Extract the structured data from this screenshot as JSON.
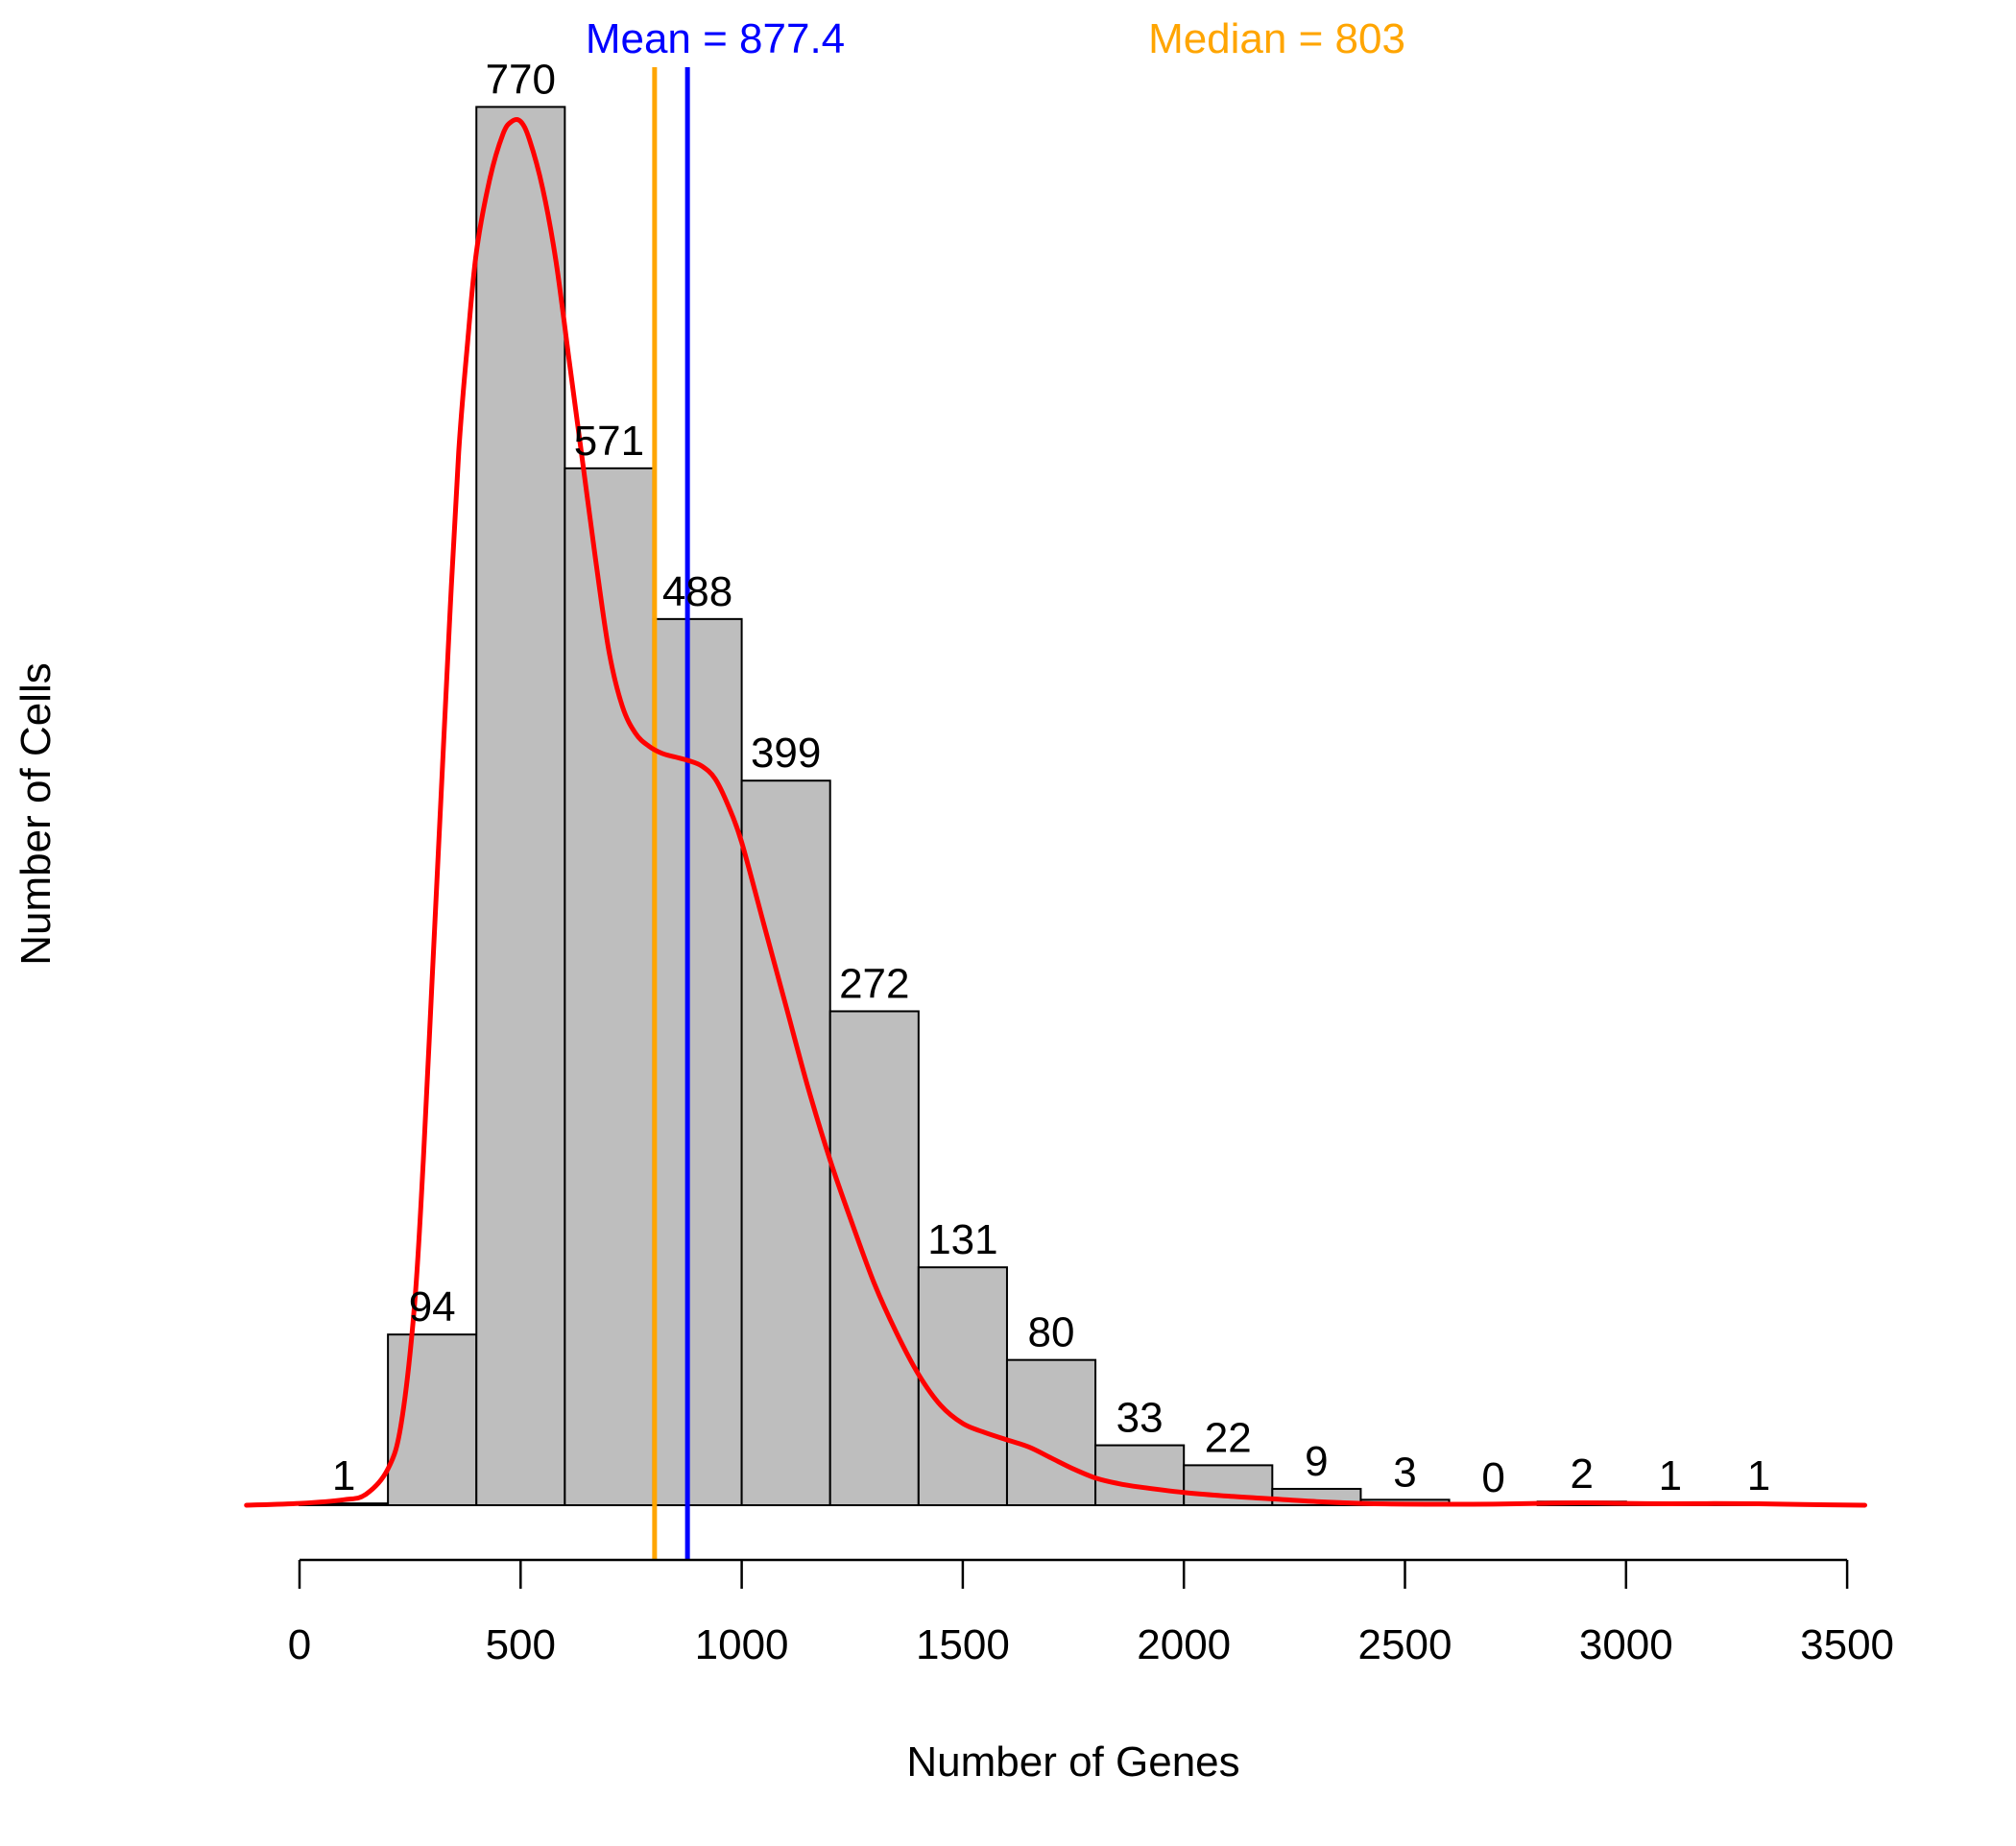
{
  "chart_data": {
    "type": "bar",
    "subtype": "histogram",
    "xlabel": "Number of Genes",
    "ylabel": "Number of Cells",
    "xlim": [
      -120,
      3540
    ],
    "ylim": [
      0,
      770
    ],
    "x_ticks": [
      0,
      500,
      1000,
      1500,
      2000,
      2500,
      3000,
      3500
    ],
    "x_tick_labels": [
      "0",
      "500",
      "1000",
      "1500",
      "2000",
      "2500",
      "3000",
      "3500"
    ],
    "bins": [
      {
        "start": 0,
        "end": 200,
        "count": 1
      },
      {
        "start": 200,
        "end": 400,
        "count": 94
      },
      {
        "start": 400,
        "end": 600,
        "count": 770
      },
      {
        "start": 600,
        "end": 800,
        "count": 571
      },
      {
        "start": 800,
        "end": 1000,
        "count": 488
      },
      {
        "start": 1000,
        "end": 1200,
        "count": 399
      },
      {
        "start": 1200,
        "end": 1400,
        "count": 272
      },
      {
        "start": 1400,
        "end": 1600,
        "count": 131
      },
      {
        "start": 1600,
        "end": 1800,
        "count": 80
      },
      {
        "start": 1800,
        "end": 2000,
        "count": 33
      },
      {
        "start": 2000,
        "end": 2200,
        "count": 22
      },
      {
        "start": 2200,
        "end": 2400,
        "count": 9
      },
      {
        "start": 2400,
        "end": 2600,
        "count": 3
      },
      {
        "start": 2600,
        "end": 2800,
        "count": 0
      },
      {
        "start": 2800,
        "end": 3000,
        "count": 2
      },
      {
        "start": 3000,
        "end": 3200,
        "count": 1
      },
      {
        "start": 3200,
        "end": 3400,
        "count": 1
      }
    ],
    "bar_labels": [
      "1",
      "94",
      "770",
      "571",
      "488",
      "399",
      "272",
      "131",
      "80",
      "33",
      "22",
      "9",
      "3",
      "0",
      "2",
      "1",
      "1"
    ],
    "reference_lines": [
      {
        "label": "Mean = 877.4",
        "value": 877.4,
        "color": "#0000ff"
      },
      {
        "label": "Median = 803",
        "value": 803,
        "color": "#ffa500"
      }
    ],
    "density_curve": {
      "color": "#ff0000",
      "points": [
        [
          -120,
          0
        ],
        [
          0,
          1
        ],
        [
          100,
          3
        ],
        [
          150,
          6
        ],
        [
          200,
          20
        ],
        [
          230,
          45
        ],
        [
          260,
          110
        ],
        [
          280,
          190
        ],
        [
          300,
          290
        ],
        [
          320,
          390
        ],
        [
          340,
          490
        ],
        [
          360,
          580
        ],
        [
          380,
          640
        ],
        [
          400,
          690
        ],
        [
          430,
          730
        ],
        [
          460,
          755
        ],
        [
          480,
          762
        ],
        [
          500,
          762
        ],
        [
          520,
          752
        ],
        [
          550,
          725
        ],
        [
          580,
          685
        ],
        [
          610,
          630
        ],
        [
          640,
          575
        ],
        [
          670,
          520
        ],
        [
          700,
          470
        ],
        [
          730,
          440
        ],
        [
          760,
          425
        ],
        [
          790,
          418
        ],
        [
          820,
          414
        ],
        [
          850,
          412
        ],
        [
          880,
          410
        ],
        [
          910,
          407
        ],
        [
          940,
          400
        ],
        [
          970,
          385
        ],
        [
          1000,
          365
        ],
        [
          1050,
          320
        ],
        [
          1100,
          275
        ],
        [
          1150,
          230
        ],
        [
          1200,
          190
        ],
        [
          1250,
          155
        ],
        [
          1300,
          122
        ],
        [
          1350,
          95
        ],
        [
          1400,
          72
        ],
        [
          1450,
          55
        ],
        [
          1500,
          45
        ],
        [
          1550,
          40
        ],
        [
          1600,
          36
        ],
        [
          1650,
          32
        ],
        [
          1700,
          26
        ],
        [
          1750,
          20
        ],
        [
          1800,
          15
        ],
        [
          1850,
          12
        ],
        [
          1900,
          10
        ],
        [
          2000,
          7
        ],
        [
          2100,
          5
        ],
        [
          2200,
          3.5
        ],
        [
          2300,
          2
        ],
        [
          2400,
          1
        ],
        [
          2500,
          0.6
        ],
        [
          2600,
          0.5
        ],
        [
          2700,
          0.6
        ],
        [
          2800,
          1
        ],
        [
          2900,
          1.3
        ],
        [
          3000,
          1
        ],
        [
          3100,
          0.8
        ],
        [
          3200,
          0.9
        ],
        [
          3300,
          0.8
        ],
        [
          3400,
          0.4
        ],
        [
          3540,
          0
        ]
      ]
    },
    "bar_fill": "#bebebe",
    "bar_stroke": "#000000",
    "grid": false,
    "legend": "none"
  }
}
